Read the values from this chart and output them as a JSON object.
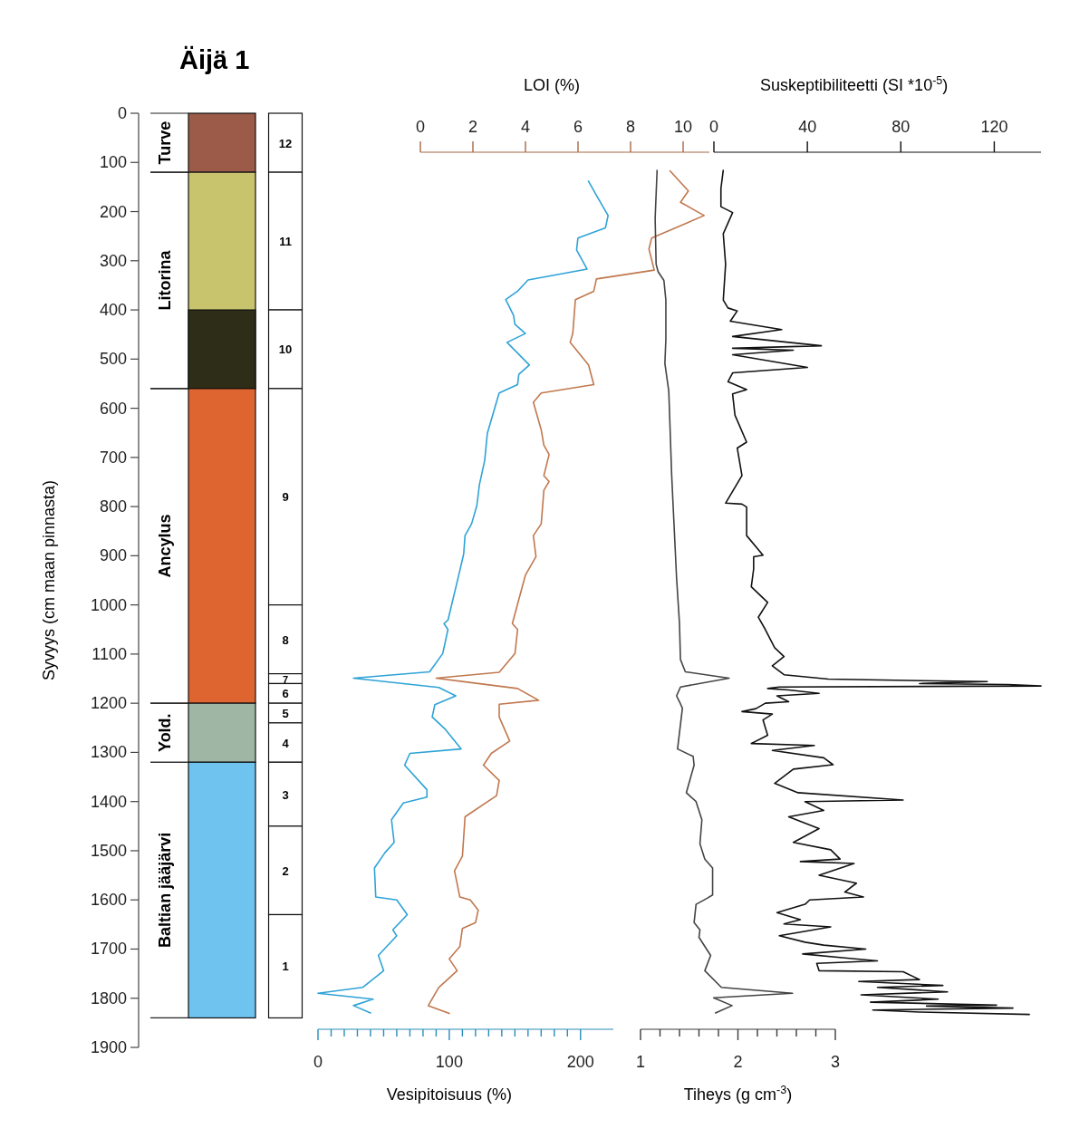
{
  "chart_data": [
    {
      "type": "bar",
      "stacked": true,
      "title": "Äijä 1",
      "ylabel": "Syvyys (cm maan pinnasta)",
      "categories": [
        null
      ],
      "ylim": [
        1900,
        0
      ],
      "yticks": [
        0,
        100,
        200,
        300,
        400,
        500,
        600,
        700,
        800,
        900,
        1000,
        1100,
        1200,
        1300,
        1400,
        1500,
        1600,
        1700,
        1800,
        1900
      ],
      "tick_labels": "y",
      "series": [
        {
          "name": "12",
          "values": [
            120
          ],
          "color": "#ffffff"
        },
        {
          "name": "11",
          "values": [
            280
          ],
          "color": "#ffffff"
        },
        {
          "name": "10",
          "values": [
            160
          ],
          "color": "#ffffff"
        },
        {
          "name": "9",
          "values": [
            440
          ],
          "color": "#ffffff"
        },
        {
          "name": "8",
          "values": [
            140
          ],
          "color": "#ffffff"
        },
        {
          "name": "7",
          "values": [
            20
          ],
          "color": "#ffffff"
        },
        {
          "name": "6",
          "values": [
            40
          ],
          "color": "#ffffff"
        },
        {
          "name": "5",
          "values": [
            40
          ],
          "color": "#ffffff"
        },
        {
          "name": "4",
          "values": [
            80
          ],
          "color": "#ffffff"
        },
        {
          "name": "3",
          "values": [
            130
          ],
          "color": "#ffffff"
        },
        {
          "name": "2",
          "values": [
            180
          ],
          "color": "#ffffff"
        },
        {
          "name": "1",
          "values": [
            210
          ],
          "color": "#ffffff"
        }
      ],
      "bands": [
        {
          "axis": "y",
          "from": 0,
          "to": 120,
          "label": "Turve",
          "color": "#9c5a48"
        },
        {
          "axis": "y",
          "from": 120,
          "to": 560,
          "label": "Litorina",
          "color": "#c8c46e"
        },
        {
          "axis": "y",
          "from": 400,
          "to": 560,
          "label": null,
          "color": "#2e2d18"
        },
        {
          "axis": "y",
          "from": 560,
          "to": 1200,
          "label": "Ancylus",
          "color": "#de6430"
        },
        {
          "axis": "y",
          "from": 1200,
          "to": 1320,
          "label": "Yold.",
          "color": "#9fb6a4"
        },
        {
          "axis": "y",
          "from": 1320,
          "to": 1840,
          "label": "Baltian jääjärvi",
          "color": "#6ec3ef"
        }
      ]
    },
    {
      "type": "line",
      "xlabel": "Vesipitoisuus (%)",
      "x2label": "LOI (%)",
      "xlim": [
        0,
        225
      ],
      "x2lim": [
        0,
        11
      ],
      "ylim": [
        1900,
        0
      ],
      "tick_labels": "x",
      "xticks": [
        0,
        {
          "value": 10,
          "label": null
        },
        {
          "value": 20,
          "label": null
        },
        {
          "value": 30,
          "label": null
        },
        {
          "value": 40,
          "label": null
        },
        {
          "value": 50,
          "label": null
        },
        {
          "value": 60,
          "label": null
        },
        {
          "value": 70,
          "label": null
        },
        {
          "value": 80,
          "label": null
        },
        {
          "value": 90,
          "label": null
        },
        100,
        {
          "value": 110,
          "label": null
        },
        {
          "value": 120,
          "label": null
        },
        {
          "value": 130,
          "label": null
        },
        {
          "value": 140,
          "label": null
        },
        {
          "value": 150,
          "label": null
        },
        {
          "value": 160,
          "label": null
        },
        {
          "value": 170,
          "label": null
        },
        {
          "value": 180,
          "label": null
        },
        {
          "value": 190,
          "label": null
        },
        200
      ],
      "x2ticks": [
        0,
        2,
        4,
        6,
        8,
        10
      ],
      "series": [
        {
          "color": "#2ea3d6",
          "x": [
            206,
            213,
            221,
            219,
            198,
            197,
            205,
            160,
            152,
            143,
            149,
            150,
            158,
            144,
            161,
            153,
            152,
            138,
            129,
            127,
            123,
            121,
            117,
            112,
            111,
            107,
            99,
            96,
            99,
            95,
            85,
            27,
            92,
            105,
            89,
            87,
            97,
            109,
            70,
            66,
            83,
            83,
            65,
            56,
            58,
            51,
            43,
            44,
            60,
            68,
            57,
            60,
            46,
            50,
            34,
            0,
            42,
            27,
            40
          ],
          "values": [
            138,
            171,
            208,
            233,
            254,
            278,
            317,
            339,
            362,
            379,
            411,
            429,
            448,
            466,
            512,
            531,
            552,
            569,
            651,
            706,
            755,
            798,
            835,
            859,
            896,
            942,
            1031,
            1038,
            1050,
            1099,
            1136,
            1149,
            1168,
            1185,
            1203,
            1228,
            1253,
            1293,
            1302,
            1326,
            1376,
            1391,
            1403,
            1437,
            1483,
            1504,
            1535,
            1594,
            1600,
            1630,
            1661,
            1673,
            1713,
            1744,
            1778,
            1790,
            1802,
            1815,
            1830
          ]
        },
        {
          "axis": "x2",
          "color": "#c0784e",
          "x": [
            9.5,
            10.2,
            9.9,
            10.8,
            8.8,
            8.7,
            8.9,
            6.7,
            6.6,
            5.9,
            5.8,
            5.7,
            6.4,
            6.6,
            4.6,
            4.3,
            4.6,
            4.7,
            4.9,
            4.7,
            4.9,
            4.7,
            4.6,
            4.3,
            4.4,
            4.0,
            3.5,
            3.7,
            3.6,
            3.0,
            0.6,
            3.7,
            4.5,
            3.0,
            3.0,
            3.4,
            2.7,
            2.4,
            3.0,
            2.9,
            1.7,
            1.6,
            1.3,
            1.5,
            1.9,
            2.2,
            2.1,
            1.6,
            1.5,
            1.1,
            1.4,
            0.7,
            0.3,
            1.1
          ],
          "values": [
            117,
            158,
            181,
            208,
            254,
            276,
            319,
            337,
            362,
            379,
            448,
            466,
            512,
            552,
            569,
            588,
            644,
            675,
            694,
            737,
            749,
            767,
            835,
            859,
            902,
            939,
            1038,
            1050,
            1099,
            1137,
            1149,
            1170,
            1194,
            1202,
            1228,
            1277,
            1302,
            1326,
            1357,
            1388,
            1431,
            1511,
            1541,
            1594,
            1600,
            1621,
            1646,
            1658,
            1695,
            1720,
            1744,
            1778,
            1815,
            1831
          ]
        }
      ]
    },
    {
      "type": "line",
      "xlabel": "Tiheys (g cm$^{-3}$)",
      "x2label": "Suskeptibiliteetti (SI *10$^{-5}$)",
      "xlim": [
        1,
        3
      ],
      "x2lim": [
        0,
        140
      ],
      "ylim": [
        1900,
        0
      ],
      "tick_labels": "x",
      "xticks": [
        1,
        {
          "value": 1.2,
          "label": null
        },
        {
          "value": 1.4,
          "label": null
        },
        {
          "value": 1.6,
          "label": null
        },
        {
          "value": 1.8,
          "label": null
        },
        2,
        {
          "value": 2.2,
          "label": null
        },
        {
          "value": 2.4,
          "label": null
        },
        {
          "value": 2.6,
          "label": null
        },
        {
          "value": 2.8,
          "label": null
        },
        3
      ],
      "x2ticks": [
        0,
        40,
        80,
        120
      ],
      "series": [
        {
          "color": "#444444",
          "x": [
            1.17,
            1.15,
            1.16,
            1.18,
            1.24,
            1.26,
            1.26,
            1.25,
            1.29,
            1.32,
            1.37,
            1.4,
            1.41,
            1.46,
            1.91,
            1.41,
            1.37,
            1.4,
            1.43,
            1.38,
            1.54,
            1.55,
            1.47,
            1.57,
            1.63,
            1.61,
            1.66,
            1.74,
            1.74,
            1.68,
            1.57,
            1.55,
            1.61,
            1.6,
            1.72,
            1.66,
            1.83,
            2.56,
            1.75,
            1.94,
            1.77
          ],
          "values": [
            116,
            214,
            307,
            322,
            340,
            380,
            460,
            509,
            565,
            737,
            945,
            1038,
            1111,
            1136,
            1149,
            1167,
            1185,
            1197,
            1210,
            1293,
            1308,
            1326,
            1382,
            1400,
            1437,
            1486,
            1517,
            1535,
            1590,
            1597,
            1609,
            1646,
            1661,
            1676,
            1713,
            1744,
            1778,
            1790,
            1799,
            1815,
            1830
          ]
        },
        {
          "axis": "x2",
          "color": "#111111",
          "x": [
            4,
            3,
            3,
            8,
            4,
            5,
            4,
            6,
            10,
            7,
            29,
            8,
            46,
            8,
            34,
            8,
            40,
            8,
            6,
            14,
            8,
            9,
            14,
            10,
            12,
            5,
            12,
            14,
            14,
            21,
            17,
            17,
            16,
            23,
            19,
            22,
            26,
            30,
            25,
            30,
            49,
            89,
            117,
            88,
            126,
            140,
            28,
            23,
            32,
            45,
            27,
            32,
            22,
            18,
            12,
            25,
            21,
            23,
            16,
            43,
            25,
            47,
            51,
            34,
            26,
            36,
            81,
            39,
            47,
            32,
            45,
            34,
            50,
            54,
            37,
            60,
            45,
            61,
            56,
            64,
            41,
            39,
            27,
            37,
            30,
            50,
            28,
            39,
            47,
            65,
            38,
            56,
            70,
            44,
            45,
            81,
            88,
            62,
            98,
            70,
            100,
            63,
            96,
            67,
            121,
            91,
            128,
            68,
            88,
            135
          ],
          "values": [
            116,
            153,
            190,
            202,
            245,
            307,
            380,
            396,
            402,
            423,
            440,
            454,
            473,
            478,
            482,
            491,
            517,
            528,
            546,
            562,
            571,
            614,
            669,
            681,
            737,
            793,
            795,
            801,
            859,
            899,
            902,
            927,
            963,
            995,
            1025,
            1050,
            1087,
            1105,
            1124,
            1142,
            1151,
            1154,
            1156,
            1160,
            1162,
            1165,
            1167,
            1170,
            1173,
            1180,
            1185,
            1197,
            1200,
            1211,
            1217,
            1222,
            1234,
            1265,
            1282,
            1286,
            1296,
            1311,
            1325,
            1334,
            1363,
            1382,
            1397,
            1400,
            1418,
            1431,
            1455,
            1483,
            1498,
            1517,
            1522,
            1526,
            1550,
            1566,
            1584,
            1594,
            1600,
            1609,
            1626,
            1640,
            1649,
            1655,
            1673,
            1686,
            1692,
            1700,
            1710,
            1718,
            1724,
            1729,
            1744,
            1746,
            1762,
            1766,
            1774,
            1778,
            1787,
            1793,
            1802,
            1808,
            1814,
            1816,
            1820,
            1824,
            1828,
            1833
          ]
        }
      ]
    }
  ]
}
